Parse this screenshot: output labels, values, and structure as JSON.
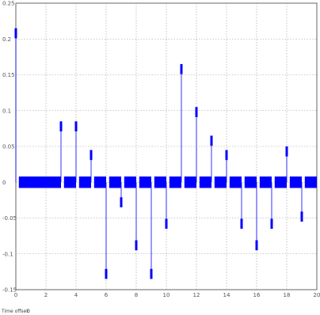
{
  "footer": {
    "time_offset_label": "Time offset:",
    "time_offset_value": "0"
  },
  "chart_data": {
    "type": "line",
    "title": "",
    "xlabel": "",
    "ylabel": "",
    "xlim": [
      0,
      20
    ],
    "ylim": [
      -0.15,
      0.25
    ],
    "grid": true,
    "x_ticks": [
      "0",
      "2",
      "4",
      "6",
      "8",
      "10",
      "12",
      "14",
      "16",
      "18",
      "20"
    ],
    "y_ticks": [
      "0.25",
      "0.2",
      "0.15",
      "0.1",
      "0.05",
      "0",
      "-0.05",
      "-0.1",
      "-0.15"
    ],
    "series": [
      {
        "color": "#0000ff",
        "baseline_band": [
          -0.008,
          0.008
        ],
        "step_duration": 0.2,
        "pulses": [
          {
            "x": 0.0,
            "y": 0.21
          },
          {
            "x": 3.0,
            "y": 0.08
          },
          {
            "x": 4.0,
            "y": 0.08
          },
          {
            "x": 5.0,
            "y": 0.04
          },
          {
            "x": 6.0,
            "y": -0.13
          },
          {
            "x": 7.0,
            "y": -0.03
          },
          {
            "x": 8.0,
            "y": -0.09
          },
          {
            "x": 9.0,
            "y": -0.13
          },
          {
            "x": 10.0,
            "y": -0.06
          },
          {
            "x": 11.0,
            "y": 0.16
          },
          {
            "x": 12.0,
            "y": 0.1
          },
          {
            "x": 13.0,
            "y": 0.06
          },
          {
            "x": 14.0,
            "y": 0.04
          },
          {
            "x": 15.0,
            "y": -0.06
          },
          {
            "x": 16.0,
            "y": -0.09
          },
          {
            "x": 17.0,
            "y": -0.06
          },
          {
            "x": 18.0,
            "y": 0.045
          },
          {
            "x": 19.0,
            "y": -0.05
          }
        ]
      }
    ]
  }
}
